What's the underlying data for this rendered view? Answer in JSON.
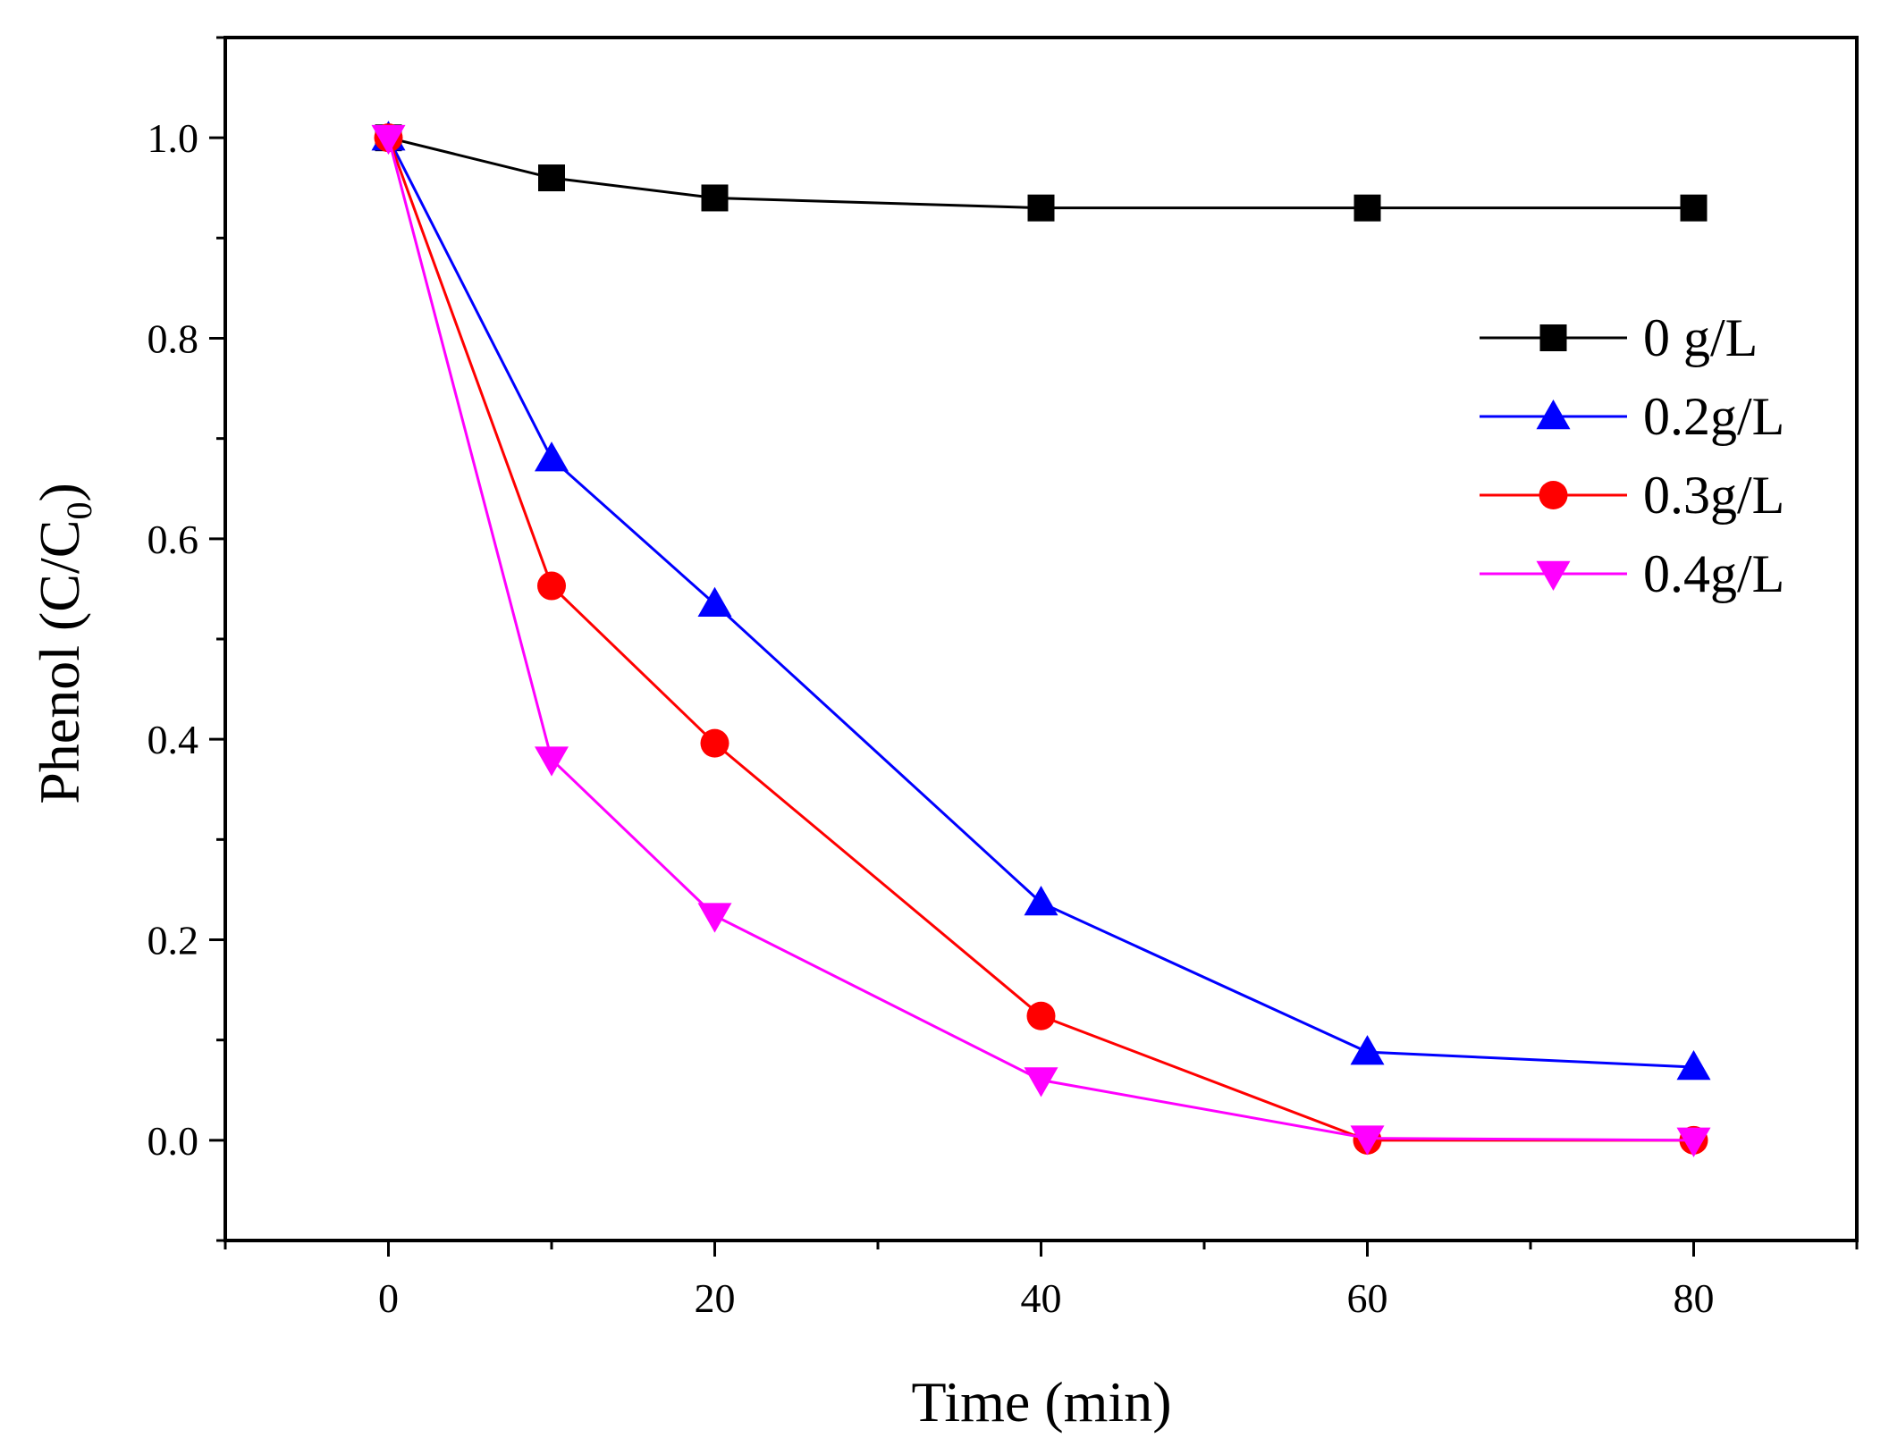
{
  "chart_data": {
    "type": "line",
    "title": "",
    "xlabel": "Time (min)",
    "ylabel_main": "Phenol (C/C",
    "ylabel_sub": "0",
    "ylabel_close": ")",
    "xlim": [
      -10,
      90
    ],
    "ylim": [
      -0.1,
      1.1
    ],
    "xticks": [
      0,
      20,
      40,
      60,
      80
    ],
    "xtick_labels": [
      "0",
      "20",
      "40",
      "60",
      "80"
    ],
    "yticks": [
      0.0,
      0.2,
      0.4,
      0.6,
      0.8,
      1.0
    ],
    "ytick_labels": [
      "0.0",
      "0.2",
      "0.4",
      "0.6",
      "0.8",
      "1.0"
    ],
    "x": [
      0,
      10,
      20,
      40,
      60,
      80
    ],
    "legend_position": "right",
    "series": [
      {
        "name": "0 g/L",
        "marker": "square",
        "color": "#000000",
        "values": [
          1.0,
          0.96,
          0.94,
          0.93,
          0.93,
          0.93
        ]
      },
      {
        "name": "0.2g/L",
        "marker": "triangle-up",
        "color": "#0000ff",
        "values": [
          1.0,
          0.68,
          0.535,
          0.237,
          0.088,
          0.073
        ]
      },
      {
        "name": "0.3g/L",
        "marker": "circle",
        "color": "#ff0000",
        "values": [
          1.0,
          0.553,
          0.396,
          0.124,
          0.0,
          0.0
        ]
      },
      {
        "name": "0.4g/L",
        "marker": "triangle-down",
        "color": "#ff00ff",
        "values": [
          1.0,
          0.38,
          0.224,
          0.06,
          0.002,
          0.0
        ]
      }
    ]
  }
}
